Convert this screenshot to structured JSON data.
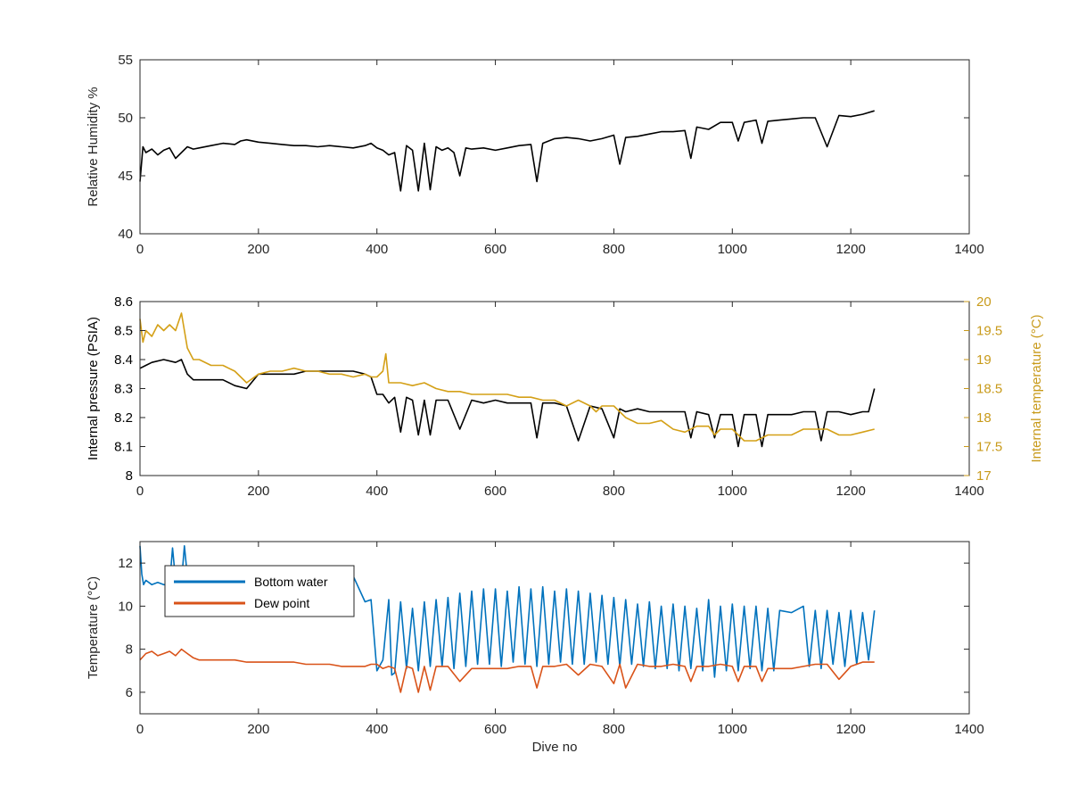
{
  "chart_data": [
    {
      "type": "line",
      "ylabel": "Relative Humidity %",
      "xlim": [
        0,
        1400
      ],
      "ylim": [
        40,
        55
      ],
      "xticks": [
        0,
        200,
        400,
        600,
        800,
        1000,
        1200,
        1400
      ],
      "yticks": [
        40,
        45,
        50,
        55
      ],
      "series": [
        {
          "color": "#000000",
          "x": [
            0,
            5,
            10,
            20,
            30,
            40,
            50,
            60,
            70,
            80,
            90,
            100,
            120,
            140,
            160,
            170,
            180,
            200,
            220,
            240,
            260,
            280,
            300,
            320,
            340,
            360,
            380,
            390,
            400,
            410,
            420,
            430,
            440,
            450,
            460,
            470,
            480,
            490,
            500,
            510,
            520,
            530,
            540,
            550,
            560,
            580,
            600,
            620,
            640,
            660,
            670,
            680,
            700,
            720,
            740,
            760,
            780,
            800,
            810,
            820,
            840,
            860,
            880,
            900,
            920,
            930,
            940,
            960,
            980,
            1000,
            1010,
            1020,
            1040,
            1050,
            1060,
            1080,
            1100,
            1120,
            1140,
            1160,
            1180,
            1200,
            1220,
            1240
          ],
          "y": [
            44.5,
            47.5,
            47.0,
            47.3,
            46.8,
            47.2,
            47.4,
            46.5,
            47.0,
            47.5,
            47.3,
            47.4,
            47.6,
            47.8,
            47.7,
            48.0,
            48.1,
            47.9,
            47.8,
            47.7,
            47.6,
            47.6,
            47.5,
            47.6,
            47.5,
            47.4,
            47.6,
            47.8,
            47.4,
            47.2,
            46.8,
            47.0,
            43.7,
            47.6,
            47.2,
            43.7,
            47.8,
            43.8,
            47.5,
            47.2,
            47.4,
            47.0,
            45.0,
            47.4,
            47.3,
            47.4,
            47.2,
            47.4,
            47.6,
            47.7,
            44.5,
            47.8,
            48.2,
            48.3,
            48.2,
            48.0,
            48.2,
            48.5,
            46.0,
            48.3,
            48.4,
            48.6,
            48.8,
            48.8,
            48.9,
            46.5,
            49.2,
            49.0,
            49.6,
            49.6,
            48.0,
            49.6,
            49.8,
            47.8,
            49.7,
            49.8,
            49.9,
            50.0,
            50.0,
            47.5,
            50.2,
            50.1,
            50.3,
            50.6
          ]
        }
      ]
    },
    {
      "type": "line",
      "ylabel": "Internal pressure (PSIA)",
      "ylabel_right": "Internal temperature (°C)",
      "xlim": [
        0,
        1400
      ],
      "ylim": [
        8,
        8.6
      ],
      "ylim_right": [
        17,
        20
      ],
      "xticks": [
        0,
        200,
        400,
        600,
        800,
        1000,
        1200,
        1400
      ],
      "yticks": [
        8,
        8.1,
        8.2,
        8.3,
        8.4,
        8.5,
        8.6
      ],
      "yticks_right": [
        17,
        17.5,
        18,
        18.5,
        19,
        19.5,
        20
      ],
      "series": [
        {
          "axis": "left",
          "color": "#000000",
          "x": [
            0,
            10,
            20,
            40,
            60,
            70,
            80,
            90,
            100,
            120,
            140,
            160,
            180,
            200,
            220,
            240,
            260,
            280,
            300,
            320,
            340,
            360,
            380,
            390,
            400,
            410,
            420,
            430,
            440,
            450,
            460,
            470,
            480,
            490,
            500,
            520,
            540,
            560,
            580,
            600,
            620,
            640,
            660,
            670,
            680,
            700,
            720,
            740,
            760,
            780,
            800,
            810,
            820,
            840,
            860,
            880,
            900,
            920,
            930,
            940,
            960,
            970,
            980,
            1000,
            1010,
            1020,
            1040,
            1050,
            1060,
            1080,
            1100,
            1120,
            1140,
            1150,
            1160,
            1180,
            1200,
            1220,
            1230,
            1240
          ],
          "y": [
            8.37,
            8.38,
            8.39,
            8.4,
            8.39,
            8.4,
            8.35,
            8.33,
            8.33,
            8.33,
            8.33,
            8.31,
            8.3,
            8.35,
            8.35,
            8.35,
            8.35,
            8.36,
            8.36,
            8.36,
            8.36,
            8.36,
            8.35,
            8.34,
            8.28,
            8.28,
            8.25,
            8.27,
            8.15,
            8.27,
            8.26,
            8.14,
            8.26,
            8.14,
            8.26,
            8.26,
            8.16,
            8.26,
            8.25,
            8.26,
            8.25,
            8.25,
            8.25,
            8.13,
            8.25,
            8.25,
            8.24,
            8.12,
            8.24,
            8.23,
            8.13,
            8.23,
            8.22,
            8.23,
            8.22,
            8.22,
            8.22,
            8.22,
            8.13,
            8.22,
            8.21,
            8.13,
            8.21,
            8.21,
            8.1,
            8.21,
            8.21,
            8.1,
            8.21,
            8.21,
            8.21,
            8.22,
            8.22,
            8.12,
            8.22,
            8.22,
            8.21,
            8.22,
            8.22,
            8.3
          ]
        },
        {
          "axis": "right",
          "color": "#d4a017",
          "x": [
            0,
            5,
            10,
            20,
            30,
            40,
            50,
            60,
            70,
            75,
            80,
            90,
            100,
            120,
            140,
            160,
            180,
            200,
            220,
            240,
            260,
            280,
            300,
            320,
            340,
            360,
            380,
            390,
            400,
            410,
            415,
            420,
            440,
            460,
            480,
            500,
            520,
            540,
            560,
            580,
            600,
            620,
            640,
            660,
            680,
            700,
            720,
            740,
            760,
            770,
            780,
            800,
            820,
            840,
            860,
            880,
            900,
            920,
            940,
            960,
            970,
            980,
            1000,
            1020,
            1040,
            1060,
            1080,
            1100,
            1120,
            1140,
            1160,
            1180,
            1200,
            1220,
            1240
          ],
          "y": [
            19.7,
            19.3,
            19.5,
            19.4,
            19.6,
            19.5,
            19.6,
            19.5,
            19.8,
            19.5,
            19.2,
            19.0,
            19.0,
            18.9,
            18.9,
            18.8,
            18.6,
            18.75,
            18.8,
            18.8,
            18.85,
            18.8,
            18.8,
            18.75,
            18.75,
            18.7,
            18.75,
            18.7,
            18.7,
            18.8,
            19.1,
            18.6,
            18.6,
            18.55,
            18.6,
            18.5,
            18.45,
            18.45,
            18.4,
            18.4,
            18.4,
            18.4,
            18.35,
            18.35,
            18.3,
            18.3,
            18.2,
            18.3,
            18.2,
            18.1,
            18.2,
            18.2,
            18.0,
            17.9,
            17.9,
            17.95,
            17.8,
            17.75,
            17.85,
            17.85,
            17.7,
            17.8,
            17.8,
            17.6,
            17.6,
            17.7,
            17.7,
            17.7,
            17.8,
            17.8,
            17.8,
            17.7,
            17.7,
            17.75,
            17.8
          ]
        }
      ]
    },
    {
      "type": "line",
      "xlabel": "Dive no",
      "ylabel": "Temperature (°C)",
      "xlim": [
        0,
        1400
      ],
      "ylim": [
        5,
        13
      ],
      "xticks": [
        0,
        200,
        400,
        600,
        800,
        1000,
        1200,
        1400
      ],
      "yticks": [
        6,
        8,
        10,
        12
      ],
      "legend": "top-left",
      "series": [
        {
          "name": "Bottom water",
          "color": "#0072bd",
          "x": [
            0,
            3,
            6,
            10,
            20,
            30,
            40,
            50,
            55,
            60,
            70,
            75,
            80,
            90,
            100,
            120,
            140,
            160,
            180,
            200,
            220,
            240,
            260,
            280,
            300,
            320,
            340,
            360,
            380,
            390,
            400,
            410,
            420,
            425,
            430,
            440,
            450,
            460,
            470,
            480,
            490,
            500,
            510,
            520,
            530,
            540,
            550,
            560,
            570,
            580,
            590,
            600,
            610,
            620,
            630,
            640,
            650,
            660,
            670,
            680,
            690,
            700,
            710,
            720,
            730,
            740,
            750,
            760,
            770,
            780,
            790,
            800,
            810,
            820,
            830,
            840,
            850,
            860,
            870,
            880,
            890,
            900,
            910,
            920,
            930,
            940,
            950,
            960,
            970,
            980,
            990,
            1000,
            1010,
            1020,
            1030,
            1040,
            1050,
            1060,
            1070,
            1080,
            1100,
            1120,
            1130,
            1140,
            1150,
            1160,
            1170,
            1180,
            1190,
            1200,
            1210,
            1220,
            1230,
            1240
          ],
          "y": [
            12.8,
            11.5,
            11.0,
            11.2,
            11.0,
            11.1,
            11.0,
            11.0,
            12.7,
            11.2,
            11.1,
            12.8,
            11.4,
            11.4,
            11.4,
            11.4,
            11.4,
            11.4,
            11.4,
            11.4,
            11.4,
            11.4,
            11.4,
            11.4,
            11.4,
            11.4,
            11.4,
            11.4,
            10.2,
            10.3,
            7.0,
            7.5,
            10.3,
            6.8,
            6.9,
            10.2,
            7.1,
            9.9,
            7.0,
            10.2,
            7.2,
            10.3,
            7.2,
            10.4,
            7.1,
            10.6,
            7.2,
            10.7,
            7.3,
            10.8,
            7.3,
            10.8,
            7.2,
            10.7,
            7.4,
            10.9,
            7.3,
            10.8,
            7.2,
            10.9,
            7.3,
            10.7,
            7.4,
            10.8,
            7.3,
            10.7,
            7.3,
            10.6,
            7.4,
            10.5,
            7.3,
            10.4,
            7.2,
            10.3,
            7.3,
            10.1,
            7.2,
            10.2,
            7.1,
            10.0,
            7.1,
            10.1,
            7.0,
            10.0,
            7.1,
            9.9,
            7.0,
            10.3,
            6.7,
            10.0,
            7.0,
            10.1,
            7.0,
            10.0,
            7.1,
            10.0,
            7.0,
            9.9,
            7.0,
            9.8,
            9.7,
            10.0,
            7.2,
            9.8,
            7.1,
            9.8,
            7.3,
            9.7,
            7.2,
            9.8,
            7.3,
            9.7,
            7.5,
            9.8
          ]
        },
        {
          "name": "Dew point",
          "color": "#d95319",
          "x": [
            0,
            10,
            20,
            30,
            40,
            50,
            60,
            70,
            80,
            90,
            100,
            120,
            140,
            160,
            180,
            200,
            220,
            240,
            260,
            280,
            300,
            320,
            340,
            360,
            380,
            390,
            400,
            410,
            420,
            430,
            440,
            450,
            460,
            470,
            480,
            490,
            500,
            520,
            540,
            560,
            580,
            600,
            620,
            640,
            660,
            670,
            680,
            700,
            720,
            740,
            760,
            780,
            800,
            810,
            820,
            840,
            860,
            880,
            900,
            920,
            930,
            940,
            960,
            980,
            1000,
            1010,
            1020,
            1040,
            1050,
            1060,
            1080,
            1100,
            1120,
            1140,
            1160,
            1180,
            1200,
            1220,
            1240
          ],
          "y": [
            7.5,
            7.8,
            7.9,
            7.7,
            7.8,
            7.9,
            7.7,
            8.0,
            7.8,
            7.6,
            7.5,
            7.5,
            7.5,
            7.5,
            7.4,
            7.4,
            7.4,
            7.4,
            7.4,
            7.3,
            7.3,
            7.3,
            7.2,
            7.2,
            7.2,
            7.3,
            7.3,
            7.1,
            7.2,
            7.1,
            6.0,
            7.2,
            7.1,
            6.0,
            7.2,
            6.1,
            7.2,
            7.2,
            6.5,
            7.1,
            7.1,
            7.1,
            7.1,
            7.2,
            7.2,
            6.2,
            7.2,
            7.2,
            7.3,
            6.8,
            7.3,
            7.2,
            6.4,
            7.3,
            6.2,
            7.3,
            7.2,
            7.2,
            7.3,
            7.2,
            6.5,
            7.2,
            7.2,
            7.3,
            7.2,
            6.5,
            7.2,
            7.2,
            6.5,
            7.1,
            7.1,
            7.1,
            7.2,
            7.3,
            7.3,
            6.6,
            7.2,
            7.4,
            7.4
          ]
        }
      ]
    }
  ]
}
